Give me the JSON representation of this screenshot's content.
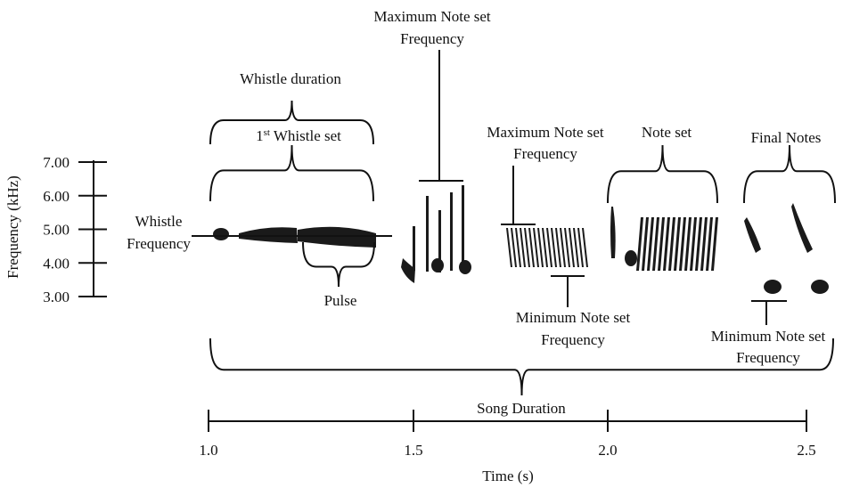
{
  "y_axis": {
    "title": "Frequency (kHz)",
    "ticks": [
      "7.00",
      "6.00",
      "5.00",
      "4.00",
      "3.00"
    ]
  },
  "x_axis": {
    "title": "Time (s)",
    "ticks": [
      "1.0",
      "1.5",
      "2.0",
      "2.5"
    ]
  },
  "labels": {
    "max_note_set_top": [
      "Maximum Note set",
      "Frequency"
    ],
    "whistle_duration": "Whistle duration",
    "first_whistle_set": {
      "number": "1",
      "suffix": "st",
      "rest": " Whistle set"
    },
    "whistle_frequency": [
      "Whistle",
      "Frequency"
    ],
    "pulse": "Pulse",
    "max_note_set_mid": [
      "Maximum Note set",
      "Frequency"
    ],
    "min_note_set_mid": [
      "Minimum Note set",
      "Frequency"
    ],
    "note_set": "Note set",
    "final_notes": "Final Notes",
    "min_note_set_final": [
      "Minimum Note set",
      "Frequency"
    ],
    "song_duration": "Song Duration"
  }
}
